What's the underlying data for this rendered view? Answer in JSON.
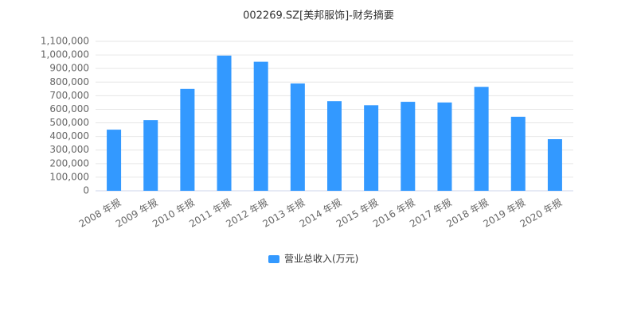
{
  "chart_data": {
    "type": "bar",
    "title": "002269.SZ[美邦服饰]-财务摘要",
    "categories": [
      "2008 年报",
      "2009 年报",
      "2010 年报",
      "2011 年报",
      "2012 年报",
      "2013 年报",
      "2014 年报",
      "2015 年报",
      "2016 年报",
      "2017 年报",
      "2018 年报",
      "2019 年报",
      "2020 年报"
    ],
    "series": [
      {
        "name": "营业总收入(万元)",
        "color": "#3399ff",
        "values": [
          450000,
          520000,
          750000,
          995000,
          950000,
          790000,
          660000,
          630000,
          655000,
          650000,
          765000,
          545000,
          380000
        ]
      }
    ],
    "ylim": [
      0,
      1100000
    ],
    "yticks": [
      0,
      {
        "value": 100000,
        "label": "100,000"
      },
      {
        "value": 200000,
        "label": "200,000"
      },
      {
        "value": 300000,
        "label": "300,000"
      },
      {
        "value": 400000,
        "label": "400,000"
      },
      {
        "value": 500000,
        "label": "500,000"
      },
      {
        "value": 600000,
        "label": "600,000"
      },
      {
        "value": 700000,
        "label": "700,000"
      },
      {
        "value": 800000,
        "label": "800,000"
      },
      {
        "value": 900000,
        "label": "900,000"
      },
      {
        "value": 1000000,
        "label": "1,000,000"
      },
      {
        "value": 1100000,
        "label": "1,100,000"
      }
    ],
    "grid": true,
    "legend": "bottom"
  }
}
